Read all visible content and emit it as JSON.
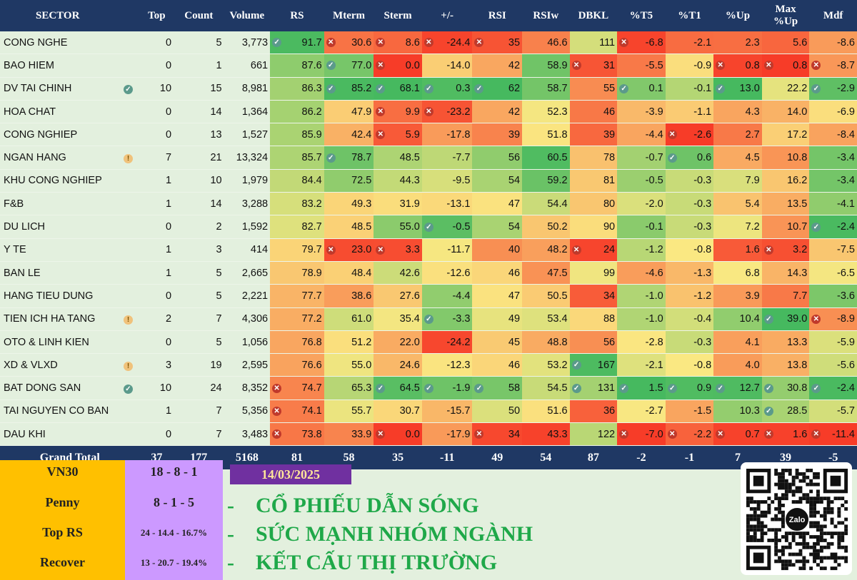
{
  "header": [
    "SECTOR",
    "Top",
    "Count",
    "Volume",
    "RS",
    "Mterm",
    "Sterm",
    "+/-",
    "RSI",
    "RSIw",
    "DBKL",
    "%T5",
    "%T1",
    "%Up",
    "Max\n%Up",
    "Mdf"
  ],
  "rows": [
    {
      "sector": "CONG NGHE",
      "flag": "",
      "top": "0",
      "count": "5",
      "volume": "3,773",
      "rs": "91.7",
      "mterm": "30.6",
      "sterm": "8.6",
      "pm": "-24.4",
      "rsi": "35",
      "rsiw": "46.6",
      "dbkl": "111",
      "t5": "-6.8",
      "t1": "-2.1",
      "up": "2.3",
      "maxup": "5.6",
      "mdf": "-8.6",
      "i_rs": "ok",
      "i_mterm": "bad",
      "i_sterm": "bad",
      "i_pm": "bad",
      "i_rsi": "bad",
      "i_t5": "bad"
    },
    {
      "sector": "BAO HIEM",
      "flag": "",
      "top": "0",
      "count": "1",
      "volume": "661",
      "rs": "87.6",
      "mterm": "77.0",
      "sterm": "0.0",
      "pm": "-14.0",
      "rsi": "42",
      "rsiw": "58.9",
      "dbkl": "31",
      "t5": "-5.5",
      "t1": "-0.9",
      "up": "0.8",
      "maxup": "0.8",
      "mdf": "-8.7",
      "i_mterm": "ok",
      "i_sterm": "bad",
      "i_dbkl": "bad",
      "i_up": "bad",
      "i_maxup": "bad",
      "i_mdf": "bad"
    },
    {
      "sector": "DV TAI CHINH",
      "flag": "ok",
      "top": "10",
      "count": "15",
      "volume": "8,981",
      "rs": "86.3",
      "mterm": "85.2",
      "sterm": "68.1",
      "pm": "0.3",
      "rsi": "62",
      "rsiw": "58.7",
      "dbkl": "55",
      "t5": "0.1",
      "t1": "-0.1",
      "up": "13.0",
      "maxup": "22.2",
      "mdf": "-2.9",
      "i_mterm": "ok",
      "i_sterm": "ok",
      "i_pm": "ok",
      "i_rsi": "ok",
      "i_t5": "ok",
      "i_up": "ok",
      "i_mdf": "ok"
    },
    {
      "sector": "HOA CHAT",
      "flag": "",
      "top": "0",
      "count": "14",
      "volume": "1,364",
      "rs": "86.2",
      "mterm": "47.9",
      "sterm": "9.9",
      "pm": "-23.2",
      "rsi": "42",
      "rsiw": "52.3",
      "dbkl": "46",
      "t5": "-3.9",
      "t1": "-1.1",
      "up": "4.3",
      "maxup": "14.0",
      "mdf": "-6.9",
      "i_sterm": "bad",
      "i_pm": "bad"
    },
    {
      "sector": "CONG NGHIEP",
      "flag": "",
      "top": "0",
      "count": "13",
      "volume": "1,527",
      "rs": "85.9",
      "mterm": "42.4",
      "sterm": "5.9",
      "pm": "-17.8",
      "rsi": "39",
      "rsiw": "51.8",
      "dbkl": "39",
      "t5": "-4.4",
      "t1": "-2.6",
      "up": "2.7",
      "maxup": "17.2",
      "mdf": "-8.4",
      "i_sterm": "bad",
      "i_t1": "bad"
    },
    {
      "sector": "NGAN HANG",
      "flag": "warn",
      "top": "7",
      "count": "21",
      "volume": "13,324",
      "rs": "85.7",
      "mterm": "78.7",
      "sterm": "48.5",
      "pm": "-7.7",
      "rsi": "56",
      "rsiw": "60.5",
      "dbkl": "78",
      "t5": "-0.7",
      "t1": "0.6",
      "up": "4.5",
      "maxup": "10.8",
      "mdf": "-3.4",
      "i_mterm": "ok",
      "i_t1": "ok"
    },
    {
      "sector": "KHU CONG NGHIEP",
      "flag": "",
      "top": "1",
      "count": "10",
      "volume": "1,979",
      "rs": "84.4",
      "mterm": "72.5",
      "sterm": "44.3",
      "pm": "-9.5",
      "rsi": "54",
      "rsiw": "59.2",
      "dbkl": "81",
      "t5": "-0.5",
      "t1": "-0.3",
      "up": "7.9",
      "maxup": "16.2",
      "mdf": "-3.4"
    },
    {
      "sector": "F&B",
      "flag": "",
      "top": "1",
      "count": "14",
      "volume": "3,288",
      "rs": "83.2",
      "mterm": "49.3",
      "sterm": "31.9",
      "pm": "-13.1",
      "rsi": "47",
      "rsiw": "54.4",
      "dbkl": "80",
      "t5": "-2.0",
      "t1": "-0.3",
      "up": "5.4",
      "maxup": "13.5",
      "mdf": "-4.1"
    },
    {
      "sector": "DU LICH",
      "flag": "",
      "top": "0",
      "count": "2",
      "volume": "1,592",
      "rs": "82.7",
      "mterm": "48.5",
      "sterm": "55.0",
      "pm": "-0.5",
      "rsi": "54",
      "rsiw": "50.2",
      "dbkl": "90",
      "t5": "-0.1",
      "t1": "-0.3",
      "up": "7.2",
      "maxup": "10.7",
      "mdf": "-2.4",
      "i_pm": "ok",
      "i_mdf": "ok"
    },
    {
      "sector": "Y TE",
      "flag": "",
      "top": "1",
      "count": "3",
      "volume": "414",
      "rs": "79.7",
      "mterm": "23.0",
      "sterm": "3.3",
      "pm": "-11.7",
      "rsi": "40",
      "rsiw": "48.2",
      "dbkl": "24",
      "t5": "-1.2",
      "t1": "-0.8",
      "up": "1.6",
      "maxup": "3.2",
      "mdf": "-7.5",
      "i_mterm": "bad",
      "i_sterm": "bad",
      "i_dbkl": "bad",
      "i_maxup": "bad"
    },
    {
      "sector": "BAN LE",
      "flag": "",
      "top": "1",
      "count": "5",
      "volume": "2,665",
      "rs": "78.9",
      "mterm": "48.4",
      "sterm": "42.6",
      "pm": "-12.6",
      "rsi": "46",
      "rsiw": "47.5",
      "dbkl": "99",
      "t5": "-4.6",
      "t1": "-1.3",
      "up": "6.8",
      "maxup": "14.3",
      "mdf": "-6.5"
    },
    {
      "sector": "HANG TIEU DUNG",
      "flag": "",
      "top": "0",
      "count": "5",
      "volume": "2,221",
      "rs": "77.7",
      "mterm": "38.6",
      "sterm": "27.6",
      "pm": "-4.4",
      "rsi": "47",
      "rsiw": "50.5",
      "dbkl": "34",
      "t5": "-1.0",
      "t1": "-1.2",
      "up": "3.9",
      "maxup": "7.7",
      "mdf": "-3.6"
    },
    {
      "sector": "TIEN ICH HA TANG",
      "flag": "warn",
      "top": "2",
      "count": "7",
      "volume": "4,306",
      "rs": "77.2",
      "mterm": "61.0",
      "sterm": "35.4",
      "pm": "-3.3",
      "rsi": "49",
      "rsiw": "53.4",
      "dbkl": "88",
      "t5": "-1.0",
      "t1": "-0.4",
      "up": "10.4",
      "maxup": "39.0",
      "mdf": "-8.9",
      "i_pm": "ok",
      "i_maxup": "ok",
      "i_mdf": "bad"
    },
    {
      "sector": "OTO & LINH KIEN",
      "flag": "",
      "top": "0",
      "count": "5",
      "volume": "1,056",
      "rs": "76.8",
      "mterm": "51.2",
      "sterm": "22.0",
      "pm": "-24.2",
      "rsi": "45",
      "rsiw": "48.8",
      "dbkl": "56",
      "t5": "-2.8",
      "t1": "-0.3",
      "up": "4.1",
      "maxup": "13.3",
      "mdf": "-5.9"
    },
    {
      "sector": "XD & VLXD",
      "flag": "warn",
      "top": "3",
      "count": "19",
      "volume": "2,595",
      "rs": "76.6",
      "mterm": "55.0",
      "sterm": "24.6",
      "pm": "-12.3",
      "rsi": "46",
      "rsiw": "53.2",
      "dbkl": "167",
      "t5": "-2.1",
      "t1": "-0.8",
      "up": "4.0",
      "maxup": "13.8",
      "mdf": "-5.6",
      "i_dbkl": "ok"
    },
    {
      "sector": "BAT DONG SAN",
      "flag": "ok",
      "top": "10",
      "count": "24",
      "volume": "8,352",
      "rs": "74.7",
      "mterm": "65.3",
      "sterm": "64.5",
      "pm": "-1.9",
      "rsi": "58",
      "rsiw": "54.5",
      "dbkl": "131",
      "t5": "1.5",
      "t1": "0.9",
      "up": "12.7",
      "maxup": "30.8",
      "mdf": "-2.4",
      "i_rs": "bad",
      "i_sterm": "ok",
      "i_pm": "ok",
      "i_rsi": "ok",
      "i_dbkl": "ok",
      "i_t5": "ok",
      "i_t1": "ok",
      "i_up": "ok",
      "i_maxup": "ok",
      "i_mdf": "ok"
    },
    {
      "sector": "TAI NGUYEN CO BAN",
      "flag": "",
      "top": "1",
      "count": "7",
      "volume": "5,356",
      "rs": "74.1",
      "mterm": "55.7",
      "sterm": "30.7",
      "pm": "-15.7",
      "rsi": "50",
      "rsiw": "51.6",
      "dbkl": "36",
      "t5": "-2.7",
      "t1": "-1.5",
      "up": "10.3",
      "maxup": "28.5",
      "mdf": "-5.7",
      "i_rs": "bad",
      "i_maxup": "ok"
    },
    {
      "sector": "DAU KHI",
      "flag": "",
      "top": "0",
      "count": "7",
      "volume": "3,483",
      "rs": "73.8",
      "mterm": "33.9",
      "sterm": "0.0",
      "pm": "-17.9",
      "rsi": "34",
      "rsiw": "43.3",
      "dbkl": "122",
      "t5": "-7.0",
      "t1": "-2.2",
      "up": "0.7",
      "maxup": "1.6",
      "mdf": "-11.4",
      "i_rs": "bad",
      "i_sterm": "bad",
      "i_rsi": "bad",
      "i_t5": "bad",
      "i_t1": "bad",
      "i_up": "bad",
      "i_maxup": "bad",
      "i_mdf": "bad"
    }
  ],
  "total": {
    "label": "Grand Total",
    "top": "37",
    "count": "177",
    "volume": "5168",
    "rs": "81",
    "mterm": "58",
    "sterm": "35",
    "pm": "-11",
    "rsi": "49",
    "rsiw": "54",
    "dbkl": "87",
    "t5": "-2",
    "t1": "-1",
    "up": "7",
    "maxup": "39",
    "mdf": "-5"
  },
  "summary": [
    {
      "label": "VN30",
      "value": "18 - 8 - 1"
    },
    {
      "label": "Penny",
      "value": "8 - 1 - 5"
    },
    {
      "label": "Top RS",
      "value": "24 - 14.4 - 16.7%"
    },
    {
      "label": "Recover",
      "value": "13 - 20.7 - 19.4%"
    }
  ],
  "date": "14/03/2025",
  "lines": [
    "CỔ PHIẾU DẪN SÓNG",
    "SỨC MẠNH NHÓM NGÀNH",
    "KẾT CẤU THỊ TRƯỜNG"
  ],
  "line_bullet": "-",
  "qr_label": "Zalo"
}
